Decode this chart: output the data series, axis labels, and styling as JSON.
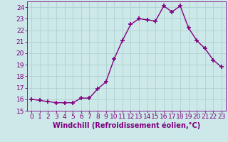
{
  "x": [
    0,
    1,
    2,
    3,
    4,
    5,
    6,
    7,
    8,
    9,
    10,
    11,
    12,
    13,
    14,
    15,
    16,
    17,
    18,
    19,
    20,
    21,
    22,
    23
  ],
  "y": [
    16.0,
    15.9,
    15.8,
    15.7,
    15.7,
    15.7,
    16.1,
    16.1,
    16.9,
    17.5,
    19.5,
    21.1,
    22.5,
    23.0,
    22.9,
    22.8,
    24.1,
    23.6,
    24.1,
    22.2,
    21.1,
    20.4,
    19.4,
    18.8
  ],
  "line_color": "#800080",
  "marker": "+",
  "marker_size": 4,
  "bg_color": "#cce8e8",
  "grid_color": "#aacccc",
  "xlabel": "Windchill (Refroidissement éolien,°C)",
  "xlim": [
    -0.5,
    23.5
  ],
  "ylim": [
    15,
    24.5
  ],
  "yticks": [
    15,
    16,
    17,
    18,
    19,
    20,
    21,
    22,
    23,
    24
  ],
  "xticks": [
    0,
    1,
    2,
    3,
    4,
    5,
    6,
    7,
    8,
    9,
    10,
    11,
    12,
    13,
    14,
    15,
    16,
    17,
    18,
    19,
    20,
    21,
    22,
    23
  ],
  "axis_color": "#800080",
  "tick_color": "#800080",
  "label_fontsize": 7,
  "tick_fontsize": 6.5,
  "marker_edge_width": 1.2,
  "line_width": 1.0
}
